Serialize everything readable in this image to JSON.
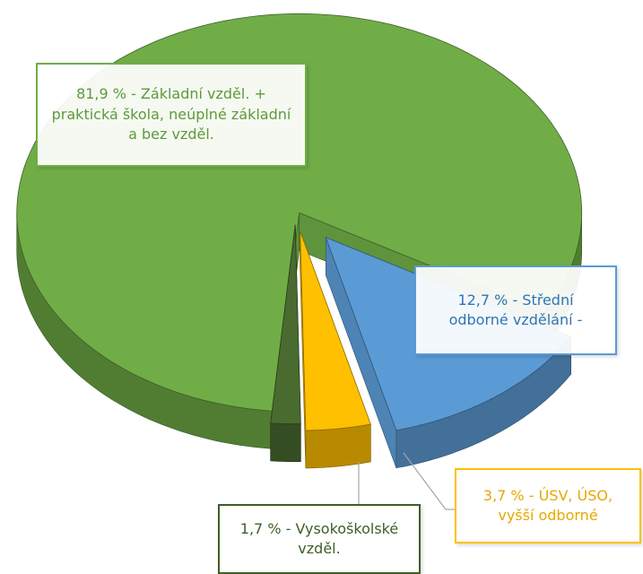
{
  "chart_data": {
    "type": "pie3d",
    "values": [
      81.9,
      12.7,
      3.7,
      1.7
    ],
    "value_labels": [
      "81,9 % - Základní vzděl. + praktická škola, neúplné základní a bez vzděl.",
      "12,7 % - Střední odborné vzdělání -",
      "3,7 % - ÚSV, ÚSO, vyšší odborné",
      "1,7 % - Vysokoškolské vzděl."
    ],
    "colors": [
      "#70ad47",
      "#5b9bd5",
      "#ffc000",
      "#4a6b2f"
    ]
  }
}
